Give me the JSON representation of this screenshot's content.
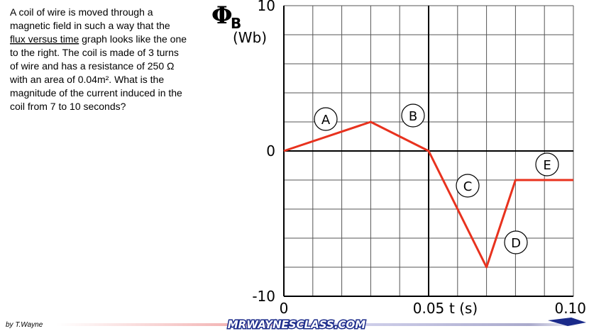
{
  "chart_data": {
    "type": "line",
    "question_lines": [
      "A coil of wire is moved through a",
      "magnetic field in such a way that the",
      [
        {
          "text": "flux versus time",
          "underline": true
        },
        {
          "text": " graph looks like the one"
        }
      ],
      "to the right. The coil is made of 3 turns",
      "of wire and has a resistance of 250 Ω",
      "with an area of 0.04m². What is the",
      "magnitude of the current induced in the",
      "coil from 7 to 10 seconds?"
    ],
    "y_label_symbol": "Φ",
    "y_label_subscript": "B",
    "y_label_unit": "(Wb)",
    "x_label": "t (s)",
    "x": [
      0,
      0.03,
      0.05,
      0.07,
      0.08,
      0.1
    ],
    "series": [
      {
        "name": "flux",
        "color": "#e8321e",
        "values": [
          0,
          2,
          0,
          -8,
          -2,
          -2
        ]
      }
    ],
    "segment_labels": [
      "A",
      "B",
      "C",
      "D",
      "E"
    ],
    "xlim": [
      0,
      0.1
    ],
    "ylim": [
      -10,
      10
    ],
    "xticks": [
      0,
      0.05,
      {
        "value": 0.1,
        "label": "0.10"
      }
    ],
    "yticks": [
      10,
      0,
      -10
    ],
    "xgrid": [
      0.01,
      0.02,
      0.03,
      0.04,
      0.05,
      0.06,
      0.07,
      0.08,
      0.09,
      0.1
    ],
    "ygrid": [
      -8,
      -6,
      -4,
      -2,
      0,
      2,
      4,
      6,
      8,
      10
    ],
    "grid": true,
    "author": "by T.Wayne",
    "site": "MRWAYNESCLASS.COM"
  }
}
